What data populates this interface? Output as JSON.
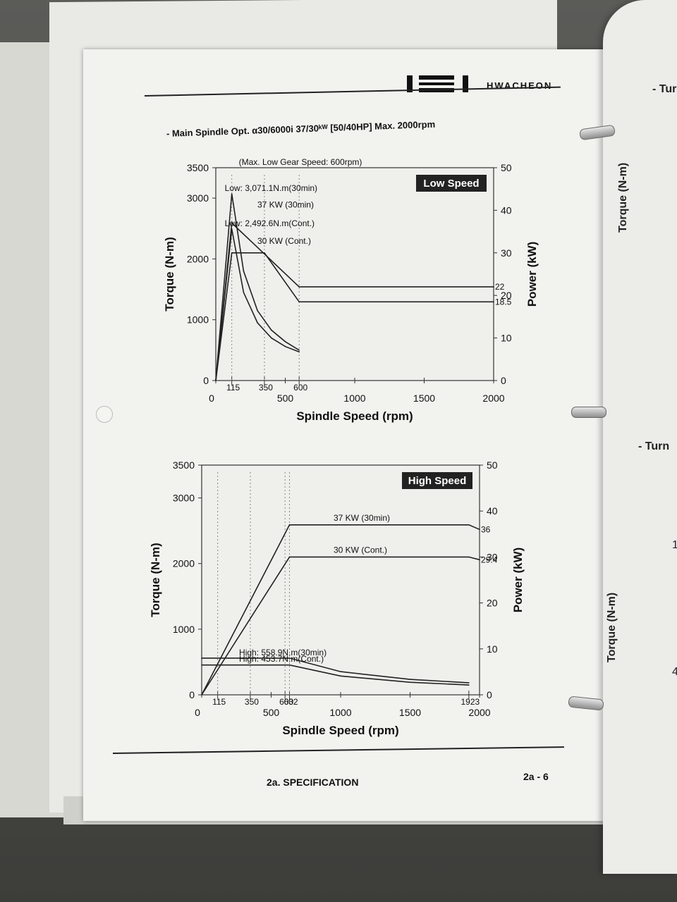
{
  "header": {
    "brand": "HWACHEON",
    "heading": "- Main Spindle Opt. α30/6000i   37/30ᵏᵂ [50/40HP] Max. 2000rpm"
  },
  "footer": {
    "section": "2a. SPECIFICATION",
    "page_number": "2a - 6"
  },
  "next_page": {
    "label_top": "- Tur",
    "label_mid": "- Turn",
    "axis_top": "Torque (N-m)",
    "axis_bottom": "Torque (N-m)",
    "stray_digit_1": "1",
    "stray_digit_2": "4"
  },
  "chart_data": [
    {
      "type": "line",
      "badge": "Low Speed",
      "top_note": "(Max. Low Gear Speed: 600rpm)",
      "xlabel": "Spindle Speed (rpm)",
      "ylabel_left": "Torque (N-m)",
      "ylabel_right": "Power (kW)",
      "xlim": [
        0,
        2000
      ],
      "ylim_left": [
        0,
        3500
      ],
      "ylim_right": [
        0,
        50
      ],
      "x_ticks": [
        "0",
        "500",
        "1000",
        "1500",
        "2000"
      ],
      "x_marks": [
        "115",
        "350",
        "600"
      ],
      "y_ticks_left": [
        "0",
        "1000",
        "2000",
        "3000",
        "3500"
      ],
      "y_ticks_right": [
        "0",
        "10",
        "20",
        "30",
        "40",
        "50"
      ],
      "right_marks": [
        "22",
        "18.5"
      ],
      "series": [
        {
          "name": "37 KW (30min)",
          "axis": "power",
          "x": [
            0,
            115,
            600,
            2000
          ],
          "y": [
            0,
            37,
            22,
            22
          ]
        },
        {
          "name": "30 KW (Cont.)",
          "axis": "power",
          "x": [
            0,
            115,
            350,
            600,
            2000
          ],
          "y": [
            0,
            30,
            30,
            18.5,
            18.5
          ]
        },
        {
          "axis": "torque",
          "x": [
            0,
            115,
            200,
            300,
            400,
            500,
            600
          ],
          "y": [
            0,
            3071.1,
            1800,
            1150,
            830,
            640,
            500
          ]
        },
        {
          "axis": "torque",
          "x": [
            0,
            115,
            200,
            300,
            400,
            500,
            600
          ],
          "y": [
            0,
            2492.6,
            1450,
            950,
            700,
            560,
            470
          ]
        }
      ],
      "annotations": [
        {
          "text": "Low: 3,071.1N.m(30min)",
          "x": 115,
          "y": 3071.1
        },
        {
          "text": "Low: 2,492.6N.m(Cont.)",
          "x": 115,
          "y": 2492.6
        },
        {
          "text": "37 KW (30min)",
          "x": 350,
          "y": 2800
        },
        {
          "text": "30 KW (Cont.)",
          "x": 350,
          "y": 2200
        }
      ]
    },
    {
      "type": "line",
      "badge": "High Speed",
      "xlabel": "Spindle Speed (rpm)",
      "ylabel_left": "Torque (N-m)",
      "ylabel_right": "Power (kW)",
      "xlim": [
        0,
        2000
      ],
      "ylim_left": [
        0,
        3500
      ],
      "ylim_right": [
        0,
        50
      ],
      "x_ticks": [
        "0",
        "500",
        "1000",
        "1500",
        "2000"
      ],
      "x_marks": [
        "115",
        "350",
        "600",
        "632",
        "1923"
      ],
      "y_ticks_left": [
        "0",
        "1000",
        "2000",
        "3000",
        "3500"
      ],
      "y_ticks_right": [
        "0",
        "10",
        "20",
        "30",
        "40",
        "50"
      ],
      "right_marks": [
        "36",
        "29.4"
      ],
      "series": [
        {
          "name": "37 KW (30min)",
          "axis": "power",
          "x": [
            0,
            632,
            1923,
            2000
          ],
          "y": [
            0,
            37,
            37,
            36
          ]
        },
        {
          "name": "30 KW (Cont.)",
          "axis": "power",
          "x": [
            0,
            632,
            1923,
            2000
          ],
          "y": [
            0,
            30,
            30,
            29.4
          ]
        },
        {
          "axis": "torque",
          "x": [
            0,
            632,
            1000,
            1500,
            1923
          ],
          "y": [
            558.9,
            558.9,
            353,
            235,
            184
          ]
        },
        {
          "axis": "torque",
          "x": [
            0,
            632,
            1000,
            1500,
            1923
          ],
          "y": [
            453.7,
            453.7,
            287,
            191,
            149
          ]
        }
      ],
      "annotations": [
        {
          "text": "High: 558.9N.m(30min)",
          "x": 320,
          "y": 560
        },
        {
          "text": "High: 453.7N.m(Cont.)",
          "x": 320,
          "y": 460
        },
        {
          "text": "37 KW (30min)",
          "x": 1000,
          "y": 37
        },
        {
          "text": "30 KW (Cont.)",
          "x": 1000,
          "y": 30
        }
      ]
    }
  ]
}
